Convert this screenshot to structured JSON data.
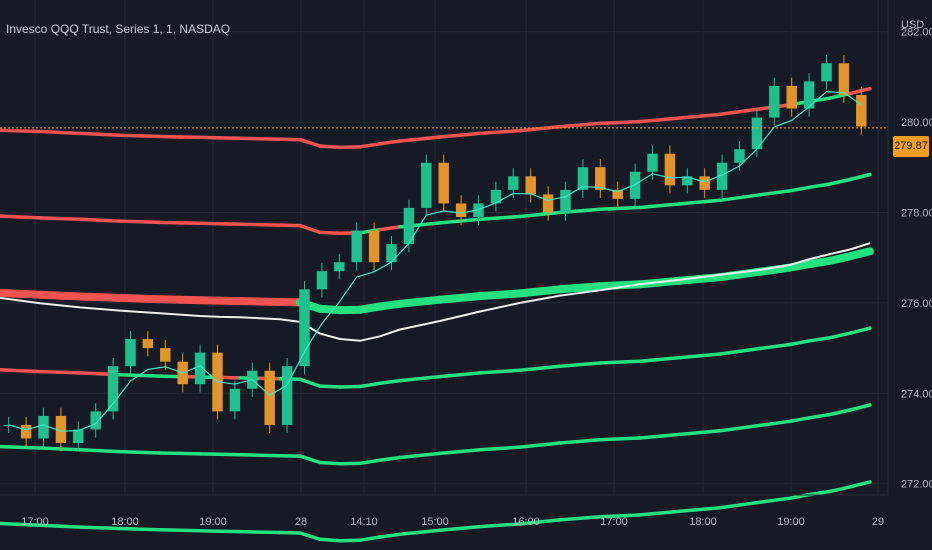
{
  "header": {
    "symbol_title": "Invesco QQQ Trust, Series 1, 1, NASDAQ",
    "currency": "USD"
  },
  "price_tag": {
    "value": "279.87",
    "color": "#f29d1b"
  },
  "colors": {
    "background": "#161a25",
    "grid": "#242936",
    "resistance": "#f05350",
    "support": "#22e17e",
    "vwap": "#eeeeee",
    "ema": "#3fe6c4",
    "candle_up": "#1fbf8f",
    "candle_down": "#e0942a",
    "text": "#b2b5be"
  },
  "chart_data": {
    "type": "line",
    "title": "Invesco QQQ Trust, Series 1, 1, NASDAQ",
    "x_ticks": [
      "17:00",
      "18:00",
      "19:00",
      "28",
      "14:10",
      "15:00",
      "16:00",
      "17:00",
      "18:00",
      "19:00",
      "29"
    ],
    "y_ticks": [
      272,
      274,
      276,
      278,
      280,
      282
    ],
    "ylim": [
      271.75,
      282.7
    ],
    "ylabel": "USD",
    "grid": true,
    "last_price": 279.87,
    "x": [
      0,
      40,
      80,
      120,
      160,
      180,
      200,
      220,
      240,
      260,
      280,
      300,
      320,
      340,
      360,
      380,
      400,
      440,
      480,
      520,
      560,
      600,
      640,
      680,
      720,
      760,
      790,
      810,
      830,
      850,
      870
    ],
    "series": [
      {
        "values": [
          279.82,
          279.79,
          279.75,
          279.71,
          279.68,
          279.67,
          279.66,
          279.65,
          279.64,
          279.63,
          279.62,
          279.61,
          279.47,
          279.44,
          279.45,
          279.52,
          279.58,
          279.67,
          279.75,
          279.81,
          279.9,
          279.97,
          280.01,
          280.09,
          280.17,
          280.29,
          280.38,
          280.46,
          280.53,
          280.63,
          280.74
        ]
      },
      {
        "values": [
          277.92,
          277.88,
          277.85,
          277.81,
          277.78,
          277.77,
          277.76,
          277.75,
          277.74,
          277.73,
          277.72,
          277.71,
          277.56,
          277.54,
          277.55,
          277.62,
          277.68,
          277.77,
          277.85,
          277.91,
          278.0,
          278.07,
          278.11,
          278.19,
          278.27,
          278.39,
          278.48,
          278.56,
          278.63,
          278.73,
          278.84
        ]
      },
      {
        "values": [
          276.22,
          276.18,
          276.14,
          276.11,
          276.08,
          276.07,
          276.06,
          276.05,
          276.04,
          276.03,
          276.02,
          276.01,
          275.87,
          275.84,
          275.85,
          275.92,
          275.98,
          276.07,
          276.15,
          276.21,
          276.3,
          276.37,
          276.41,
          276.49,
          276.57,
          276.69,
          276.78,
          276.86,
          276.93,
          277.03,
          277.14
        ]
      },
      {
        "values": [
          274.52,
          274.48,
          274.45,
          274.41,
          274.38,
          274.37,
          274.36,
          274.35,
          274.34,
          274.33,
          274.32,
          274.31,
          274.16,
          274.14,
          274.15,
          274.22,
          274.28,
          274.37,
          274.45,
          274.51,
          274.6,
          274.67,
          274.71,
          274.79,
          274.87,
          274.99,
          275.08,
          275.16,
          275.23,
          275.33,
          275.44
        ]
      },
      {
        "values": [
          272.82,
          272.79,
          272.75,
          272.71,
          272.68,
          272.67,
          272.66,
          272.65,
          272.64,
          272.63,
          272.62,
          272.61,
          272.47,
          272.44,
          272.45,
          272.52,
          272.58,
          272.67,
          272.75,
          272.81,
          272.9,
          272.97,
          273.01,
          273.09,
          273.17,
          273.29,
          273.38,
          273.46,
          273.53,
          273.63,
          273.74
        ]
      },
      {
        "values": [
          271.12,
          271.08,
          271.04,
          271.01,
          270.98,
          270.97,
          270.96,
          270.95,
          270.94,
          270.93,
          270.92,
          270.91,
          270.77,
          270.74,
          270.75,
          270.82,
          270.88,
          270.97,
          271.05,
          271.11,
          271.2,
          271.27,
          271.31,
          271.39,
          271.47,
          271.59,
          271.68,
          271.76,
          271.83,
          271.93,
          272.04
        ]
      },
      {
        "values": [
          276.11,
          275.99,
          275.9,
          275.83,
          275.77,
          275.74,
          275.71,
          275.69,
          275.68,
          275.66,
          275.64,
          275.58,
          275.32,
          275.2,
          275.16,
          275.26,
          275.41,
          275.6,
          275.81,
          276.0,
          276.16,
          276.28,
          276.41,
          276.51,
          276.62,
          276.73,
          276.84,
          276.97,
          277.08,
          277.18,
          277.32
        ]
      }
    ],
    "candles_close": [
      273.3,
      273.0,
      273.5,
      272.9,
      273.2,
      273.6,
      274.6,
      275.2,
      275.0,
      274.7,
      274.2,
      274.9,
      273.6,
      274.1,
      274.5,
      273.3,
      274.6,
      276.3,
      276.7,
      276.9,
      277.6,
      276.9,
      277.3,
      278.1,
      279.1,
      278.2,
      277.9,
      278.2,
      278.5,
      278.8,
      278.4,
      278.0,
      278.5,
      279.0,
      278.5,
      278.3,
      278.9,
      279.3,
      278.6,
      278.8,
      278.5,
      279.1,
      279.4,
      280.1,
      280.8,
      280.3,
      280.9,
      281.3,
      280.6,
      279.9
    ]
  }
}
